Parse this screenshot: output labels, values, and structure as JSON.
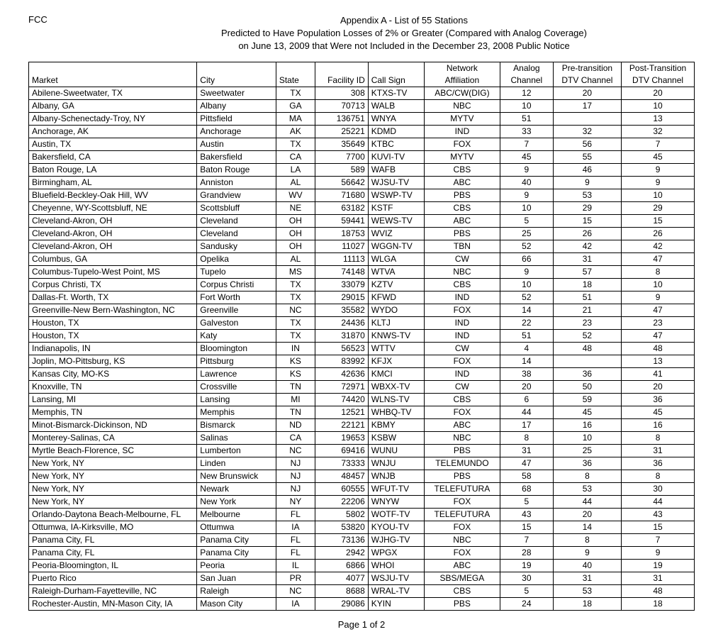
{
  "header": {
    "org": "FCC",
    "title1": "Appendix A - List of 55 Stations",
    "title2": "Predicted to Have Population Losses of 2% or Greater (Compared with Analog Coverage)",
    "title3": "on June 13, 2009 that Were not Included in the December 23, 2008 Public Notice"
  },
  "columns": {
    "market_top": "",
    "market": "Market",
    "city_top": "",
    "city": "City",
    "state_top": "",
    "state": "State",
    "facility_top": "",
    "facility": "Facility ID",
    "callsign_top": "",
    "callsign": "Call Sign",
    "network_top": "Network",
    "network": "Affiliation",
    "analog_top": "Analog",
    "analog": "Channel",
    "pre_top": "Pre-transition",
    "pre": "DTV Channel",
    "post_top": "Post-Transition",
    "post": "DTV Channel"
  },
  "rows": [
    {
      "market": "Abilene-Sweetwater, TX",
      "city": "Sweetwater",
      "state": "TX",
      "facility": "308",
      "callsign": "KTXS-TV",
      "network": "ABC/CW(DIG)",
      "analog": "12",
      "pre": "20",
      "post": "20"
    },
    {
      "market": "Albany, GA",
      "city": "Albany",
      "state": "GA",
      "facility": "70713",
      "callsign": "WALB",
      "network": "NBC",
      "analog": "10",
      "pre": "17",
      "post": "10"
    },
    {
      "market": "Albany-Schenectady-Troy, NY",
      "city": "Pittsfield",
      "state": "MA",
      "facility": "136751",
      "callsign": "WNYA",
      "network": "MYTV",
      "analog": "51",
      "pre": "",
      "post": "13"
    },
    {
      "market": "Anchorage, AK",
      "city": "Anchorage",
      "state": "AK",
      "facility": "25221",
      "callsign": "KDMD",
      "network": "IND",
      "analog": "33",
      "pre": "32",
      "post": "32"
    },
    {
      "market": "Austin, TX",
      "city": "Austin",
      "state": "TX",
      "facility": "35649",
      "callsign": "KTBC",
      "network": "FOX",
      "analog": "7",
      "pre": "56",
      "post": "7"
    },
    {
      "market": "Bakersfield, CA",
      "city": "Bakersfield",
      "state": "CA",
      "facility": "7700",
      "callsign": "KUVI-TV",
      "network": "MYTV",
      "analog": "45",
      "pre": "55",
      "post": "45"
    },
    {
      "market": "Baton Rouge, LA",
      "city": "Baton Rouge",
      "state": "LA",
      "facility": "589",
      "callsign": "WAFB",
      "network": "CBS",
      "analog": "9",
      "pre": "46",
      "post": "9"
    },
    {
      "market": "Birmingham, AL",
      "city": "Anniston",
      "state": "AL",
      "facility": "56642",
      "callsign": "WJSU-TV",
      "network": "ABC",
      "analog": "40",
      "pre": "9",
      "post": "9"
    },
    {
      "market": "Bluefield-Beckley-Oak Hill, WV",
      "city": "Grandview",
      "state": "WV",
      "facility": "71680",
      "callsign": "WSWP-TV",
      "network": "PBS",
      "analog": "9",
      "pre": "53",
      "post": "10"
    },
    {
      "market": "Cheyenne, WY-Scottsbluff, NE",
      "city": "Scottsbluff",
      "state": "NE",
      "facility": "63182",
      "callsign": "KSTF",
      "network": "CBS",
      "analog": "10",
      "pre": "29",
      "post": "29"
    },
    {
      "market": "Cleveland-Akron, OH",
      "city": "Cleveland",
      "state": "OH",
      "facility": "59441",
      "callsign": "WEWS-TV",
      "network": "ABC",
      "analog": "5",
      "pre": "15",
      "post": "15"
    },
    {
      "market": "Cleveland-Akron, OH",
      "city": "Cleveland",
      "state": "OH",
      "facility": "18753",
      "callsign": "WVIZ",
      "network": "PBS",
      "analog": "25",
      "pre": "26",
      "post": "26"
    },
    {
      "market": "Cleveland-Akron, OH",
      "city": "Sandusky",
      "state": "OH",
      "facility": "11027",
      "callsign": "WGGN-TV",
      "network": "TBN",
      "analog": "52",
      "pre": "42",
      "post": "42"
    },
    {
      "market": "Columbus, GA",
      "city": "Opelika",
      "state": "AL",
      "facility": "11113",
      "callsign": "WLGA",
      "network": "CW",
      "analog": "66",
      "pre": "31",
      "post": "47"
    },
    {
      "market": "Columbus-Tupelo-West Point, MS",
      "city": "Tupelo",
      "state": "MS",
      "facility": "74148",
      "callsign": "WTVA",
      "network": "NBC",
      "analog": "9",
      "pre": "57",
      "post": "8"
    },
    {
      "market": "Corpus Christi, TX",
      "city": "Corpus Christi",
      "state": "TX",
      "facility": "33079",
      "callsign": "KZTV",
      "network": "CBS",
      "analog": "10",
      "pre": "18",
      "post": "10"
    },
    {
      "market": "Dallas-Ft. Worth, TX",
      "city": "Fort Worth",
      "state": "TX",
      "facility": "29015",
      "callsign": "KFWD",
      "network": "IND",
      "analog": "52",
      "pre": "51",
      "post": "9"
    },
    {
      "market": "Greenville-New Bern-Washington, NC",
      "city": "Greenville",
      "state": "NC",
      "facility": "35582",
      "callsign": "WYDO",
      "network": "FOX",
      "analog": "14",
      "pre": "21",
      "post": "47"
    },
    {
      "market": "Houston, TX",
      "city": "Galveston",
      "state": "TX",
      "facility": "24436",
      "callsign": "KLTJ",
      "network": "IND",
      "analog": "22",
      "pre": "23",
      "post": "23"
    },
    {
      "market": "Houston, TX",
      "city": "Katy",
      "state": "TX",
      "facility": "31870",
      "callsign": "KNWS-TV",
      "network": "IND",
      "analog": "51",
      "pre": "52",
      "post": "47"
    },
    {
      "market": "Indianapolis, IN",
      "city": "Bloomington",
      "state": "IN",
      "facility": "56523",
      "callsign": "WTTV",
      "network": "CW",
      "analog": "4",
      "pre": "48",
      "post": "48"
    },
    {
      "market": "Joplin, MO-Pittsburg, KS",
      "city": "Pittsburg",
      "state": "KS",
      "facility": "83992",
      "callsign": "KFJX",
      "network": "FOX",
      "analog": "14",
      "pre": "",
      "post": "13"
    },
    {
      "market": "Kansas City, MO-KS",
      "city": "Lawrence",
      "state": "KS",
      "facility": "42636",
      "callsign": "KMCI",
      "network": "IND",
      "analog": "38",
      "pre": "36",
      "post": "41"
    },
    {
      "market": "Knoxville, TN",
      "city": "Crossville",
      "state": "TN",
      "facility": "72971",
      "callsign": "WBXX-TV",
      "network": "CW",
      "analog": "20",
      "pre": "50",
      "post": "20"
    },
    {
      "market": "Lansing, MI",
      "city": "Lansing",
      "state": "MI",
      "facility": "74420",
      "callsign": "WLNS-TV",
      "network": "CBS",
      "analog": "6",
      "pre": "59",
      "post": "36"
    },
    {
      "market": "Memphis, TN",
      "city": "Memphis",
      "state": "TN",
      "facility": "12521",
      "callsign": "WHBQ-TV",
      "network": "FOX",
      "analog": "44",
      "pre": "45",
      "post": "45"
    },
    {
      "market": "Minot-Bismarck-Dickinson, ND",
      "city": "Bismarck",
      "state": "ND",
      "facility": "22121",
      "callsign": "KBMY",
      "network": "ABC",
      "analog": "17",
      "pre": "16",
      "post": "16"
    },
    {
      "market": "Monterey-Salinas, CA",
      "city": "Salinas",
      "state": "CA",
      "facility": "19653",
      "callsign": "KSBW",
      "network": "NBC",
      "analog": "8",
      "pre": "10",
      "post": "8"
    },
    {
      "market": "Myrtle Beach-Florence, SC",
      "city": "Lumberton",
      "state": "NC",
      "facility": "69416",
      "callsign": "WUNU",
      "network": "PBS",
      "analog": "31",
      "pre": "25",
      "post": "31"
    },
    {
      "market": "New York, NY",
      "city": "Linden",
      "state": "NJ",
      "facility": "73333",
      "callsign": "WNJU",
      "network": "TELEMUNDO",
      "analog": "47",
      "pre": "36",
      "post": "36"
    },
    {
      "market": "New York, NY",
      "city": "New Brunswick",
      "state": "NJ",
      "facility": "48457",
      "callsign": "WNJB",
      "network": "PBS",
      "analog": "58",
      "pre": "8",
      "post": "8"
    },
    {
      "market": "New York, NY",
      "city": "Newark",
      "state": "NJ",
      "facility": "60555",
      "callsign": "WFUT-TV",
      "network": "TELEFUTURA",
      "analog": "68",
      "pre": "53",
      "post": "30"
    },
    {
      "market": "New York, NY",
      "city": "New York",
      "state": "NY",
      "facility": "22206",
      "callsign": "WNYW",
      "network": "FOX",
      "analog": "5",
      "pre": "44",
      "post": "44"
    },
    {
      "market": "Orlando-Daytona Beach-Melbourne, FL",
      "city": "Melbourne",
      "state": "FL",
      "facility": "5802",
      "callsign": "WOTF-TV",
      "network": "TELEFUTURA",
      "analog": "43",
      "pre": "20",
      "post": "43"
    },
    {
      "market": "Ottumwa, IA-Kirksville, MO",
      "city": "Ottumwa",
      "state": "IA",
      "facility": "53820",
      "callsign": "KYOU-TV",
      "network": "FOX",
      "analog": "15",
      "pre": "14",
      "post": "15"
    },
    {
      "market": "Panama City, FL",
      "city": "Panama City",
      "state": "FL",
      "facility": "73136",
      "callsign": "WJHG-TV",
      "network": "NBC",
      "analog": "7",
      "pre": "8",
      "post": "7"
    },
    {
      "market": "Panama City, FL",
      "city": "Panama City",
      "state": "FL",
      "facility": "2942",
      "callsign": "WPGX",
      "network": "FOX",
      "analog": "28",
      "pre": "9",
      "post": "9"
    },
    {
      "market": "Peoria-Bloomington, IL",
      "city": "Peoria",
      "state": "IL",
      "facility": "6866",
      "callsign": "WHOI",
      "network": "ABC",
      "analog": "19",
      "pre": "40",
      "post": "19"
    },
    {
      "market": "Puerto Rico",
      "city": "San Juan",
      "state": "PR",
      "facility": "4077",
      "callsign": "WSJU-TV",
      "network": "SBS/MEGA",
      "analog": "30",
      "pre": "31",
      "post": "31"
    },
    {
      "market": "Raleigh-Durham-Fayetteville, NC",
      "city": "Raleigh",
      "state": "NC",
      "facility": "8688",
      "callsign": "WRAL-TV",
      "network": "CBS",
      "analog": "5",
      "pre": "53",
      "post": "48"
    },
    {
      "market": "Rochester-Austin, MN-Mason City, IA",
      "city": "Mason City",
      "state": "IA",
      "facility": "29086",
      "callsign": "KYIN",
      "network": "PBS",
      "analog": "24",
      "pre": "18",
      "post": "18"
    }
  ],
  "footer": "Page 1 of 2"
}
